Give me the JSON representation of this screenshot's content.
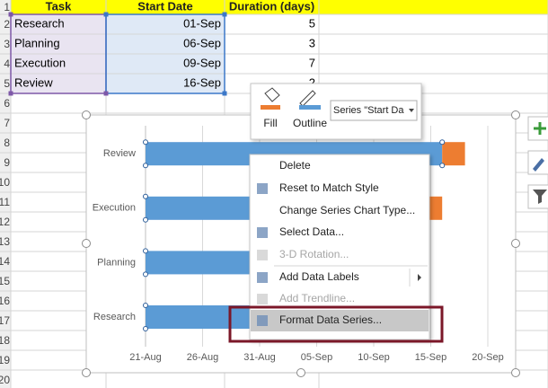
{
  "sheet": {
    "columns": [
      "Task",
      "Start Date",
      "Duration (days)"
    ],
    "row_numbers": [
      1,
      2,
      3,
      4,
      5,
      6,
      7,
      8,
      9,
      10,
      11,
      12,
      13,
      14,
      15,
      16,
      17,
      18,
      19,
      20
    ],
    "rows": [
      [
        "Research",
        "01-Sep",
        5
      ],
      [
        "Planning",
        "06-Sep",
        3
      ],
      [
        "Execution",
        "09-Sep",
        7
      ],
      [
        "Review",
        "16-Sep",
        2
      ]
    ]
  },
  "mini_toolbar": {
    "fill": "Fill",
    "outline": "Outline",
    "series_selector": "Series \"Start Da"
  },
  "chart": {
    "categories": [
      "Research",
      "Planning",
      "Execution",
      "Review"
    ],
    "xticks": [
      "21-Aug",
      "26-Aug",
      "31-Aug",
      "05-Sep",
      "10-Sep",
      "15-Sep",
      "20-Sep"
    ],
    "start_color": "#5b9bd5",
    "duration_color": "#ed7d31",
    "grid": true
  },
  "context_menu": {
    "items": [
      {
        "label": "Delete",
        "enabled": true
      },
      {
        "label": "Reset to Match Style",
        "enabled": true
      },
      {
        "label": "Change Series Chart Type...",
        "enabled": true
      },
      {
        "label": "Select Data...",
        "enabled": true
      },
      {
        "label": "3-D Rotation...",
        "enabled": false
      },
      {
        "label": "Add Data Labels",
        "enabled": true,
        "submenu": true
      },
      {
        "label": "Add Trendline...",
        "enabled": false
      },
      {
        "label": "Format Data Series...",
        "enabled": true,
        "highlighted": true
      }
    ]
  }
}
